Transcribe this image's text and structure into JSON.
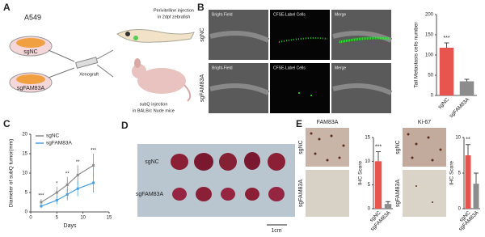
{
  "panel_a": {
    "label": "A",
    "cell_line": "A549",
    "dish_1": "sgNC",
    "dish_2": "sgFAM83A",
    "method": "Xenograft",
    "zebrafish_line_1": "Perivitelline injection",
    "zebrafish_line_2": "in 2dpf zebrafish",
    "mouse_line_1": "subQ injection",
    "mouse_line_2": "in BALB/c Nude mice"
  },
  "panel_b": {
    "label": "B",
    "columns": [
      "Bright-Field",
      "CFSE-Label Cells",
      "Merge"
    ],
    "rows": [
      "sgNC",
      "sgFAM83A"
    ]
  },
  "panel_c": {
    "label": "C"
  },
  "panel_d": {
    "label": "D",
    "rows": [
      "sgNC",
      "sgFAM83A"
    ],
    "scale": "1cm"
  },
  "panel_e": {
    "label": "E",
    "columns": [
      "FAM83A",
      "Ki-67"
    ],
    "rows": [
      "sgNC",
      "sgFAM83A"
    ]
  },
  "chart_data": [
    {
      "type": "bar",
      "y_label": "Tail Metastasis cells number",
      "categories": [
        "sgNC",
        "sgFAM83A"
      ],
      "values": [
        118,
        35
      ],
      "errors": [
        12,
        5
      ],
      "colors": [
        "#e8554e",
        "#8c8c8c"
      ],
      "ylim": [
        0,
        200
      ],
      "yticks": [
        0,
        50,
        100,
        150,
        200
      ],
      "annotation": "***"
    },
    {
      "type": "line",
      "x_label": "Days",
      "y_label": "Diameter of subQ tumor(mm)",
      "x": [
        2,
        5,
        7,
        9,
        12
      ],
      "series": [
        {
          "name": "sgNC",
          "color": "#8c8c8c",
          "values": [
            2.5,
            5,
            7,
            9.5,
            12
          ],
          "errors": [
            0.8,
            1.5,
            2,
            2.5,
            3
          ]
        },
        {
          "name": "sgFAM83A",
          "color": "#4a9fe0",
          "values": [
            1.5,
            3,
            4.5,
            6,
            7.5
          ],
          "errors": [
            0.5,
            1,
            1.5,
            2,
            2.5
          ]
        }
      ],
      "annotations": [
        "***",
        "*",
        "**",
        "**",
        "***"
      ],
      "xlim": [
        0,
        15
      ],
      "xticks": [
        0,
        5,
        10,
        15
      ],
      "ylim": [
        0,
        20
      ],
      "yticks": [
        0,
        5,
        10,
        15,
        20
      ]
    },
    {
      "type": "bar",
      "y_label": "IHC Score",
      "categories": [
        "sgNC",
        "sgFAM83A"
      ],
      "values": [
        10,
        1
      ],
      "errors": [
        2,
        0.5
      ],
      "colors": [
        "#e8554e",
        "#8c8c8c"
      ],
      "ylim": [
        0,
        15
      ],
      "yticks": [
        0,
        5,
        10,
        15
      ],
      "annotation": "***"
    },
    {
      "type": "bar",
      "y_label": "IHC Score",
      "categories": [
        "sgNC",
        "sgFAM83A"
      ],
      "values": [
        7.5,
        3.5
      ],
      "errors": [
        1.5,
        1.5
      ],
      "colors": [
        "#e8554e",
        "#8c8c8c"
      ],
      "ylim": [
        0,
        10
      ],
      "yticks": [
        0,
        5,
        10
      ],
      "annotation": "**"
    }
  ]
}
